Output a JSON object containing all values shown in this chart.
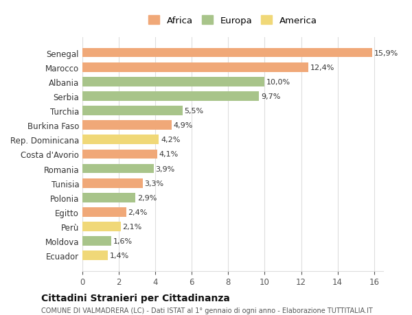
{
  "categories": [
    "Ecuador",
    "Moldova",
    "Perù",
    "Egitto",
    "Polonia",
    "Tunisia",
    "Romania",
    "Costa d'Avorio",
    "Rep. Dominicana",
    "Burkina Faso",
    "Turchia",
    "Serbia",
    "Albania",
    "Marocco",
    "Senegal"
  ],
  "values": [
    1.4,
    1.6,
    2.1,
    2.4,
    2.9,
    3.3,
    3.9,
    4.1,
    4.2,
    4.9,
    5.5,
    9.7,
    10.0,
    12.4,
    15.9
  ],
  "continents": [
    "America",
    "Europa",
    "America",
    "Africa",
    "Europa",
    "Africa",
    "Europa",
    "Africa",
    "America",
    "Africa",
    "Europa",
    "Europa",
    "Europa",
    "Africa",
    "Africa"
  ],
  "colors": {
    "Africa": "#F0A878",
    "Europa": "#A8C48A",
    "America": "#F0D878"
  },
  "labels": [
    "1,4%",
    "1,6%",
    "2,1%",
    "2,4%",
    "2,9%",
    "3,3%",
    "3,9%",
    "4,1%",
    "4,2%",
    "4,9%",
    "5,5%",
    "9,7%",
    "10,0%",
    "12,4%",
    "15,9%"
  ],
  "xlim": [
    0,
    16.5
  ],
  "xticks": [
    0,
    2,
    4,
    6,
    8,
    10,
    12,
    14,
    16
  ],
  "title": "Cittadini Stranieri per Cittadinanza",
  "subtitle": "COMUNE DI VALMADRERA (LC) - Dati ISTAT al 1° gennaio di ogni anno - Elaborazione TUTTITALIA.IT",
  "legend_order": [
    "Africa",
    "Europa",
    "America"
  ],
  "background_color": "#ffffff",
  "grid_color": "#dddddd"
}
